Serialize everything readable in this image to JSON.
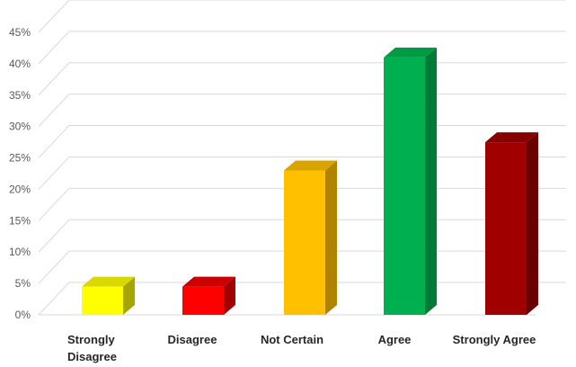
{
  "chart_data": {
    "type": "bar",
    "title": "",
    "xlabel": "",
    "ylabel": "",
    "categories": [
      "Strongly Disagree",
      "Disagree",
      "Not Certain",
      "Agree",
      "Strongly Agree"
    ],
    "category_lines": [
      [
        "Strongly",
        "Disagree"
      ],
      [
        "Disagree"
      ],
      [
        "Not Certain"
      ],
      [
        "Agree"
      ],
      [
        "Strongly Agree"
      ]
    ],
    "values": [
      4.5,
      4.5,
      23,
      41,
      27.5
    ],
    "unit": "%",
    "ylim": [
      0,
      45
    ],
    "yticks": [
      "0%",
      "5%",
      "10%",
      "15%",
      "20%",
      "25%",
      "30%",
      "35%",
      "40%",
      "45%"
    ],
    "grid": true,
    "legend": "none",
    "style": "3d-column",
    "colors": [
      {
        "front": "#ffff00",
        "side": "#a6a600",
        "top": "#d9d900"
      },
      {
        "front": "#ff0000",
        "side": "#a30000",
        "top": "#cc0000"
      },
      {
        "front": "#ffc000",
        "side": "#b08400",
        "top": "#d9a300"
      },
      {
        "front": "#00b050",
        "side": "#007a37",
        "top": "#009944"
      },
      {
        "front": "#a00000",
        "side": "#6a0000",
        "top": "#860000"
      }
    ]
  }
}
